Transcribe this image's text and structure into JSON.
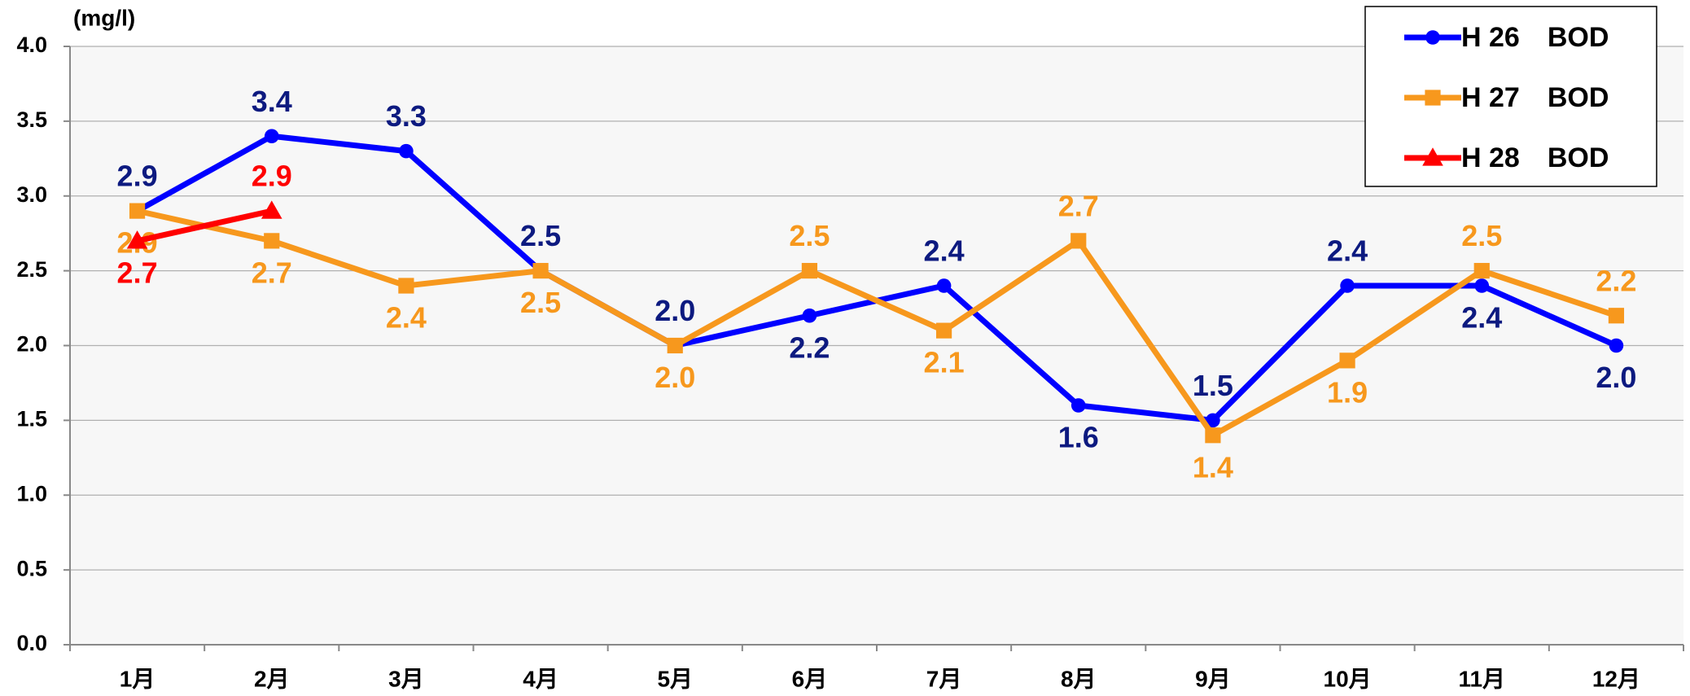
{
  "chart_data": {
    "type": "line",
    "y_label": "(mg/l)",
    "categories": [
      "1月",
      "2月",
      "3月",
      "4月",
      "5月",
      "6月",
      "7月",
      "8月",
      "9月",
      "10月",
      "11月",
      "12月"
    ],
    "series": [
      {
        "name": "H 26　BOD",
        "color": "#0000ff",
        "label_color": "#0d1a80",
        "marker": "circle",
        "values": [
          2.9,
          3.4,
          3.3,
          2.5,
          2.0,
          2.2,
          2.4,
          1.6,
          1.5,
          2.4,
          2.4,
          2.0
        ],
        "value_labels": [
          "2.9",
          "3.4",
          "3.3",
          "2.5",
          "2.0",
          "2.2",
          "2.4",
          "1.6",
          "1.5",
          "2.4",
          "2.4",
          "2.0"
        ]
      },
      {
        "name": "H 27　BOD",
        "color": "#f7981d",
        "label_color": "#f7981d",
        "marker": "square",
        "values": [
          2.9,
          2.7,
          2.4,
          2.5,
          2.0,
          2.5,
          2.1,
          2.7,
          1.4,
          1.9,
          2.5,
          2.2
        ],
        "value_labels": [
          "2.9",
          "2.7",
          "2.4",
          "2.5",
          "2.0",
          "2.5",
          "2.1",
          "2.7",
          "1.4",
          "1.9",
          "2.5",
          "2.2"
        ]
      },
      {
        "name": "H 28　BOD",
        "color": "#ff0000",
        "label_color": "#ff0000",
        "marker": "triangle",
        "values": [
          2.7,
          2.9,
          null,
          null,
          null,
          null,
          null,
          null,
          null,
          null,
          null,
          null
        ],
        "value_labels": [
          "2.7",
          "2.9",
          null,
          null,
          null,
          null,
          null,
          null,
          null,
          null,
          null,
          null
        ]
      }
    ],
    "ylim": [
      0,
      4
    ],
    "yticks": [
      {
        "value": 0,
        "label": "0.0"
      },
      {
        "value": 0.5,
        "label": "0.5"
      },
      {
        "value": 1,
        "label": "1.0"
      },
      {
        "value": 1.5,
        "label": "1.5"
      },
      {
        "value": 2,
        "label": "2.0"
      },
      {
        "value": 2.5,
        "label": "2.5"
      },
      {
        "value": 3,
        "label": "3.0"
      },
      {
        "value": 3.5,
        "label": "3.5"
      },
      {
        "value": 4,
        "label": "4.0"
      }
    ],
    "grid": true,
    "legend": "top-right"
  }
}
